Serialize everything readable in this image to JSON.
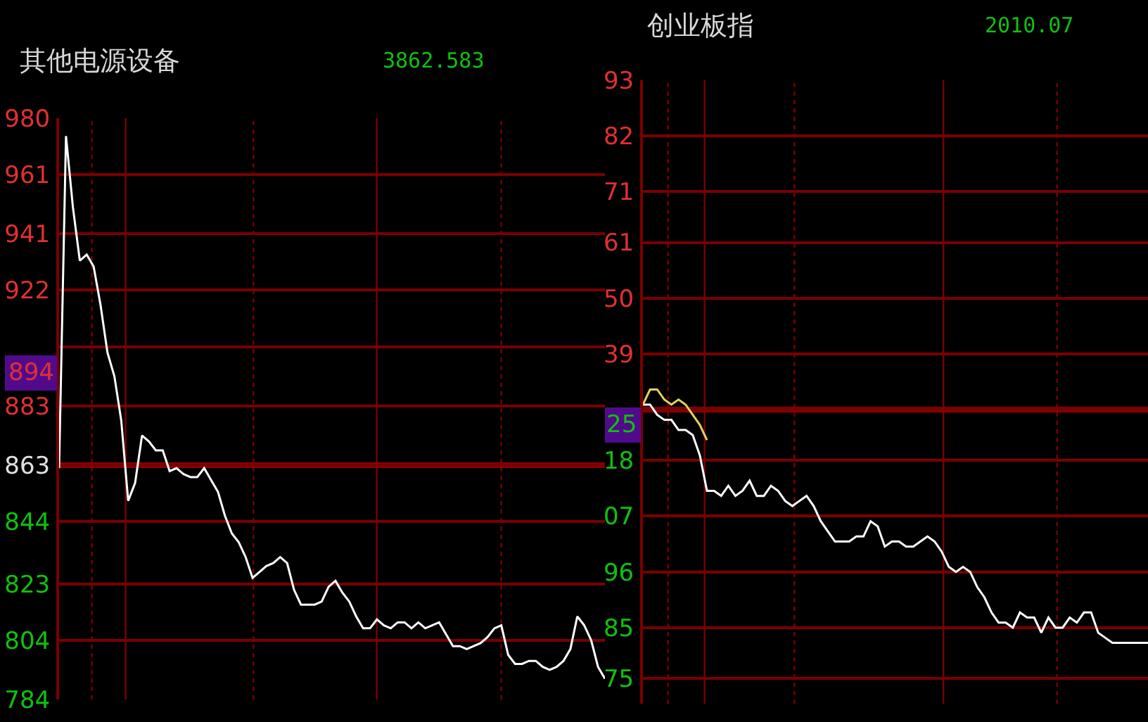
{
  "chart_data": [
    {
      "type": "line",
      "title": "其他电源设备",
      "subtitle": "3862.583",
      "categories": [
        null,
        null,
        null,
        null,
        null,
        null,
        null,
        null,
        null,
        null,
        null,
        null,
        null,
        null,
        null,
        null,
        null,
        null,
        null,
        null,
        null,
        null,
        null,
        null,
        null,
        null,
        null,
        null,
        null,
        null,
        null,
        null,
        null,
        null,
        null,
        null,
        null,
        null,
        null,
        null,
        null,
        null,
        null,
        null,
        null,
        null,
        null,
        null,
        null,
        null,
        null,
        null,
        null,
        null,
        null,
        null,
        null,
        null,
        null,
        null,
        null,
        null,
        null,
        null,
        null,
        null,
        null,
        null,
        null,
        null,
        null,
        null,
        null,
        null,
        null,
        null,
        null,
        null,
        null,
        null
      ],
      "series": [
        {
          "color": "#ffffff",
          "values": [
            862,
            974,
            950,
            932,
            934,
            930,
            917,
            901,
            893,
            878,
            851,
            857,
            873,
            871,
            868,
            868,
            861,
            862,
            860,
            859,
            859,
            862,
            858,
            854,
            846,
            840,
            837,
            832,
            825,
            827,
            829,
            830,
            832,
            830,
            821,
            816,
            816,
            816,
            817,
            822,
            824,
            820,
            817,
            812,
            808,
            808,
            811,
            809,
            808,
            810,
            810,
            808,
            810,
            808,
            809,
            810,
            806,
            802,
            802,
            801,
            802,
            803,
            805,
            808,
            809,
            799,
            796,
            796,
            797,
            797,
            795,
            794,
            795,
            797,
            801,
            812,
            809,
            804,
            795,
            791
          ]
        }
      ],
      "ylim": [
        784,
        980
      ],
      "yticks": [
        980,
        961,
        941,
        922,
        {
          "value": 903,
          "label": null
        },
        883,
        863,
        844,
        823,
        804,
        784
      ],
      "ref_lines": [
        {
          "axis": "y",
          "value": 863,
          "color": "#8b0000"
        }
      ],
      "annotations": [
        {
          "text": "894",
          "y": 894
        }
      ],
      "grid": true,
      "tick_labels": "y"
    },
    {
      "type": "line",
      "title": "创业板指",
      "subtitle": "2010.07",
      "categories": [
        null,
        null,
        null,
        null,
        null,
        null,
        null,
        null,
        null,
        null,
        null,
        null,
        null,
        null,
        null,
        null,
        null,
        null,
        null,
        null,
        null,
        null,
        null,
        null,
        null,
        null,
        null,
        null,
        null,
        null,
        null,
        null,
        null,
        null,
        null,
        null,
        null,
        null,
        null,
        null,
        null,
        null,
        null,
        null,
        null,
        null,
        null,
        null,
        null,
        null,
        null,
        null,
        null,
        null,
        null,
        null,
        null,
        null,
        null,
        null,
        null,
        null,
        null,
        null,
        null,
        null,
        null,
        null,
        null,
        null,
        null,
        null
      ],
      "series": [
        {
          "color": "#ffffff",
          "values": [
            2029,
            2029,
            2027,
            2026,
            2026,
            2024,
            2024,
            2023,
            2019,
            2012,
            2012,
            2011,
            2013,
            2011,
            2012,
            2014,
            2011,
            2011,
            2013,
            2012,
            2010,
            2009,
            2010,
            2011,
            2009,
            2006,
            2004,
            2002,
            2002,
            2002,
            2003,
            2003,
            2006,
            2005,
            2001,
            2002,
            2002,
            2001,
            2001,
            2002,
            2003,
            2002,
            2000,
            1997,
            1996,
            1997,
            1996,
            1993,
            1991,
            1988,
            1986,
            1986,
            1985,
            1988,
            1987,
            1987,
            1984,
            1987,
            1985,
            1985,
            1987,
            1986,
            1988,
            1988,
            1984,
            1983,
            1982,
            1982,
            1982,
            1982,
            1982,
            1982
          ]
        },
        {
          "color": "#e6d15a",
          "values": [
            2029,
            2032,
            2032,
            2030,
            2029,
            2030,
            2029,
            2027,
            2025,
            2022,
            null,
            null,
            null,
            null,
            null,
            null,
            null,
            null,
            null,
            null,
            null,
            null,
            null,
            null,
            null,
            null,
            null,
            null,
            null,
            null,
            null,
            null,
            null,
            null,
            null,
            null,
            null,
            null,
            null,
            null,
            null,
            null,
            null,
            null,
            null,
            null,
            null,
            null,
            null,
            null,
            null,
            null,
            null,
            null,
            null,
            null,
            null,
            null,
            null,
            null,
            null,
            null,
            null,
            null,
            null,
            null,
            null,
            null,
            null,
            null,
            null,
            null
          ]
        }
      ],
      "ylim": [
        1970,
        2093
      ],
      "yticks": [
        {
          "value": 2093,
          "label": "93"
        },
        {
          "value": 2082,
          "label": "82"
        },
        {
          "value": 2071,
          "label": "71"
        },
        {
          "value": 2061,
          "label": "61"
        },
        {
          "value": 2050,
          "label": "50"
        },
        {
          "value": 2039,
          "label": "39"
        },
        {
          "value": 2028,
          "label": null
        },
        {
          "value": 2018,
          "label": "18"
        },
        {
          "value": 2007,
          "label": "07"
        },
        {
          "value": 1996,
          "label": "96"
        },
        {
          "value": 1985,
          "label": "85"
        },
        {
          "value": 1975,
          "label": "75"
        }
      ],
      "ref_lines": [
        {
          "axis": "y",
          "value": 2028,
          "color": "#8b0000"
        }
      ],
      "annotations": [
        {
          "text": "25",
          "y": 2025
        }
      ],
      "grid": true,
      "tick_labels": "y"
    }
  ]
}
